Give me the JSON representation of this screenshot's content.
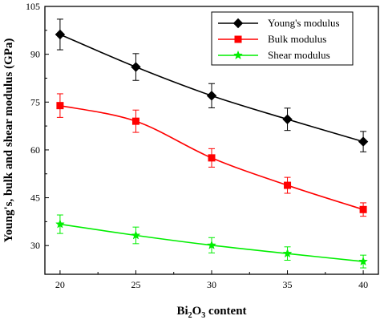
{
  "chart_data": {
    "type": "line",
    "x": [
      20,
      25,
      30,
      35,
      40
    ],
    "xlim": [
      19,
      41
    ],
    "ylim": [
      21,
      105
    ],
    "xticks": [
      20,
      25,
      30,
      35,
      40
    ],
    "yticks": [
      30,
      45,
      60,
      75,
      90,
      105
    ],
    "xlabel": "Bi2O3 content",
    "xlabel_parts": {
      "base": "Bi",
      "sub1": "2",
      "mid": "O",
      "sub2": "3",
      "tail": " content"
    },
    "ylabel": "Young's, bulk and shear modulus (GPa)",
    "grid": false,
    "legend_position": "top-right",
    "series": [
      {
        "name": "Young's modulus",
        "color": "#000000",
        "marker": "diamond",
        "values": [
          96.2,
          86.0,
          77.0,
          69.6,
          62.6
        ],
        "errors": [
          4.8,
          4.2,
          3.8,
          3.5,
          3.2
        ]
      },
      {
        "name": "Bulk modulus",
        "color": "#ff0000",
        "marker": "square",
        "values": [
          73.9,
          69.0,
          57.5,
          48.9,
          41.3
        ],
        "errors": [
          3.7,
          3.5,
          2.9,
          2.5,
          2.1
        ]
      },
      {
        "name": "Shear modulus",
        "color": "#00ee00",
        "marker": "star",
        "values": [
          36.7,
          33.2,
          30.1,
          27.5,
          25.0
        ],
        "errors": [
          2.9,
          2.6,
          2.4,
          2.1,
          2.0
        ]
      }
    ]
  }
}
